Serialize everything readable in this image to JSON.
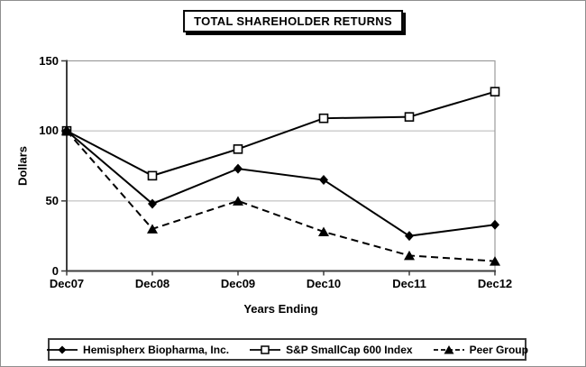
{
  "chart_data": {
    "type": "line",
    "title": "TOTAL SHAREHOLDER RETURNS",
    "categories": [
      "Dec07",
      "Dec08",
      "Dec09",
      "Dec10",
      "Dec11",
      "Dec12"
    ],
    "series": [
      {
        "name": "Hemispherx Biopharma, Inc.",
        "marker": "diamond",
        "line_style": "solid",
        "values": [
          100,
          48,
          73,
          65,
          25,
          33
        ]
      },
      {
        "name": "S&P SmallCap 600 Index",
        "marker": "square",
        "line_style": "solid",
        "values": [
          100,
          68,
          87,
          109,
          110,
          128
        ]
      },
      {
        "name": "Peer Group",
        "marker": "triangle",
        "line_style": "dashed",
        "values": [
          100,
          30,
          50,
          28,
          11,
          7
        ]
      }
    ],
    "xlabel": "Years Ending",
    "ylabel": "Dollars",
    "ylim": [
      0,
      150
    ],
    "y_ticks": [
      0,
      50,
      100,
      150
    ],
    "grid": "horizontal",
    "legend_position": "bottom",
    "colors": {
      "series": "#000000",
      "gridline": "#c9c9c9",
      "plot_border": "#9b9b9b",
      "axis": "#3d3d3d",
      "background": "#ffffff",
      "outer_border": "#8f8f8f"
    }
  }
}
